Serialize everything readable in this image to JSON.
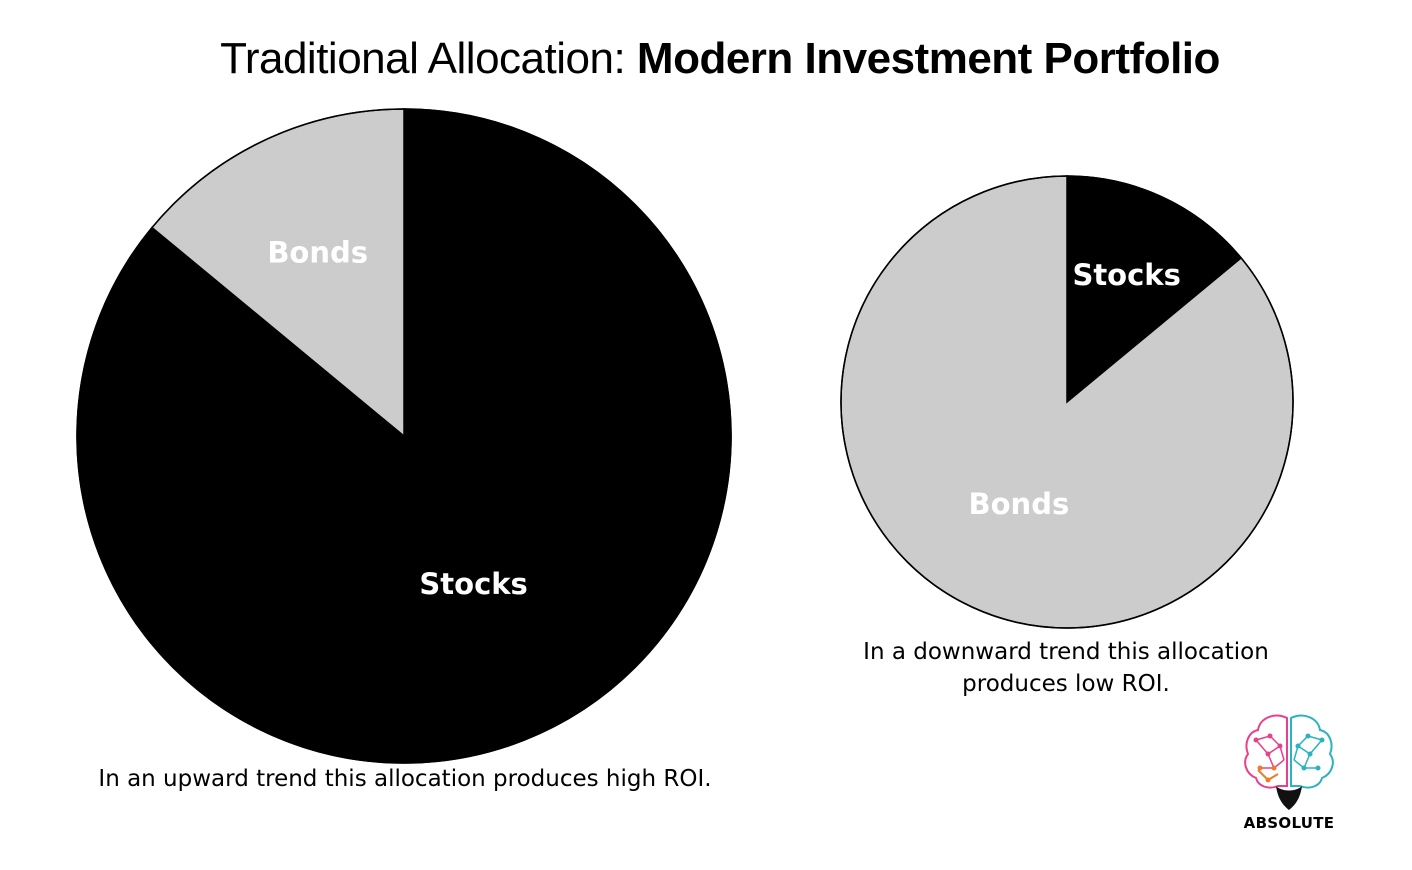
{
  "title": {
    "light": "Traditional Allocation:",
    "bold": "Modern Investment Portfolio"
  },
  "chart_data": [
    {
      "type": "pie",
      "slices": [
        {
          "label": "Stocks",
          "value": 86,
          "color": "#000000"
        },
        {
          "label": "Bonds",
          "value": 14,
          "color": "#cccccc"
        }
      ],
      "caption": "In an upward trend this allocation produces high ROI."
    },
    {
      "type": "pie",
      "slices": [
        {
          "label": "Stocks",
          "value": 14,
          "color": "#000000"
        },
        {
          "label": "Bonds",
          "value": 86,
          "color": "#cccccc"
        }
      ],
      "caption": "In a downward trend this allocation produces low ROI."
    }
  ],
  "logo": {
    "text": "ABSOLUTE",
    "icon": "brain-icon"
  }
}
